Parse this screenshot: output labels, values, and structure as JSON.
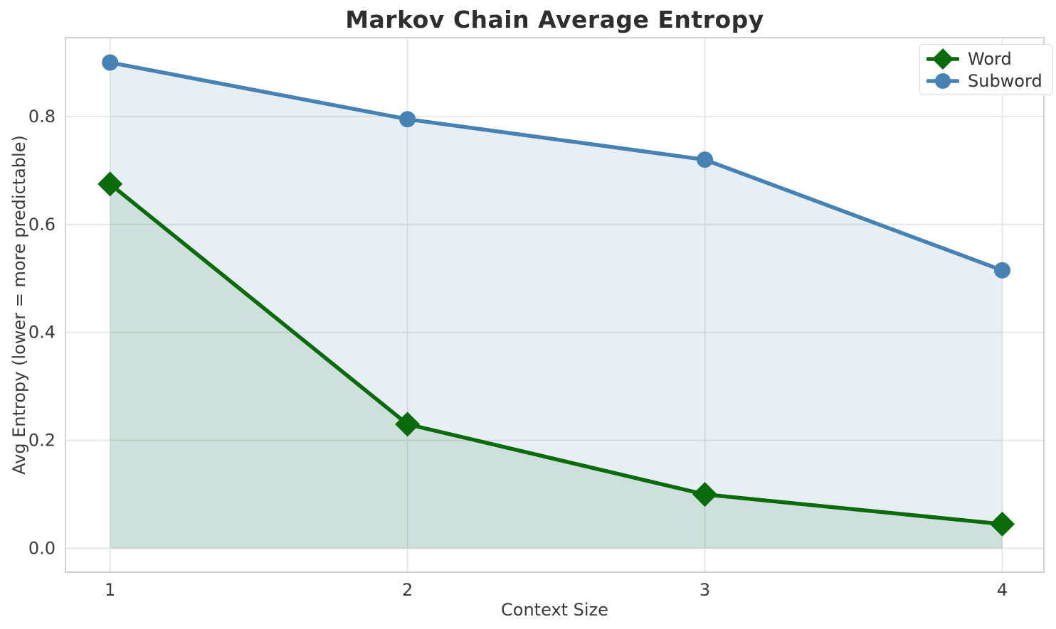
{
  "chart_data": {
    "type": "line",
    "title": "Markov Chain Average Entropy",
    "xlabel": "Context Size",
    "ylabel": "Avg Entropy (lower = more predictable)",
    "x": [
      1,
      2,
      3,
      4
    ],
    "series": [
      {
        "name": "Word",
        "values": [
          0.675,
          0.23,
          0.1,
          0.045
        ],
        "color": "#0a6b0a",
        "marker": "diamond",
        "fill_opacity": 0.11
      },
      {
        "name": "Subword",
        "values": [
          0.9,
          0.795,
          0.72,
          0.515
        ],
        "color": "#4682B4",
        "marker": "circle",
        "fill_opacity": 0.13
      }
    ],
    "xticks": [
      1,
      2,
      3,
      4
    ],
    "yticks": [
      0.0,
      0.2,
      0.4,
      0.6,
      0.8
    ],
    "xlim": [
      0.85,
      4.14
    ],
    "ylim": [
      -0.044,
      0.946
    ],
    "fill_baseline": 0,
    "grid": true,
    "legend_position": "upper right",
    "colors": {
      "grid": "#e6e6e6",
      "spine": "#cccccc",
      "title_text": "#2e2e2e",
      "axis_text": "#3b3b3b"
    }
  }
}
